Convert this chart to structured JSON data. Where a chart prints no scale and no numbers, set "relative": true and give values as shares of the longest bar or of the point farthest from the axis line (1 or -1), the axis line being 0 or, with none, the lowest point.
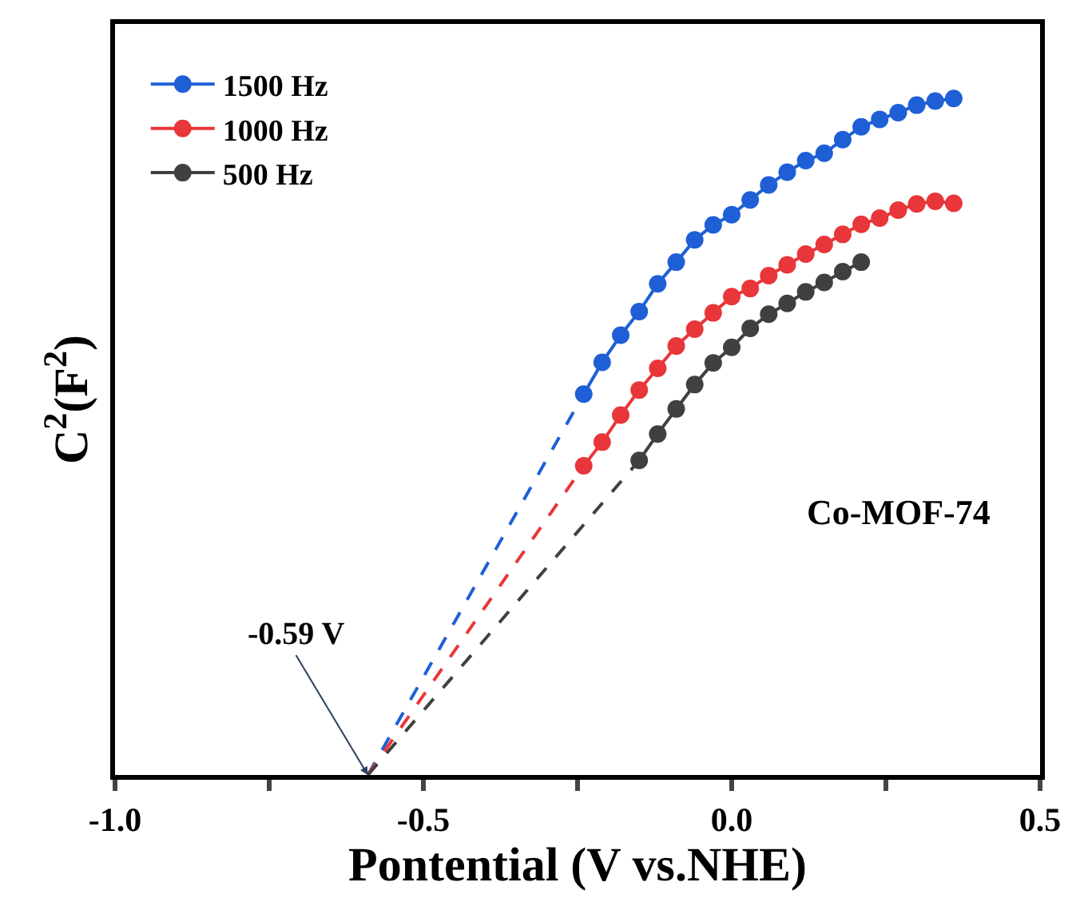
{
  "chart_data": {
    "type": "line",
    "relative": true,
    "xlabel": "Pontential (V vs.NHE)",
    "ylabel": "C$^{2}$(F$^{2}$)",
    "xlim": [
      -1.0,
      0.5
    ],
    "xticks": [
      {
        "value": -1.0,
        "label": "-1.0"
      },
      {
        "value": -0.75,
        "label": null
      },
      {
        "value": -0.5,
        "label": "-0.5"
      },
      {
        "value": -0.25,
        "label": null
      },
      {
        "value": 0.0,
        "label": "0.0"
      },
      {
        "value": 0.25,
        "label": null
      },
      {
        "value": 0.5,
        "label": "0.5"
      }
    ],
    "tick_labels": "x",
    "legend": "top left",
    "marker": "circle",
    "annotations": [
      {
        "text": "-0.59 V",
        "x": -0.59,
        "y": 0
      },
      "Co-MOF-74"
    ],
    "series": [
      {
        "name": "1500 Hz",
        "color": "#1f5fd6",
        "line_style": "solid",
        "x": [
          -0.24,
          -0.21,
          -0.18,
          -0.15,
          -0.12,
          -0.09,
          -0.06,
          -0.03,
          0.0,
          0.03,
          0.06,
          0.09,
          0.12,
          0.15,
          0.18,
          0.21,
          0.24,
          0.27,
          0.3,
          0.33,
          0.36
        ],
        "values": [
          0.563,
          0.61,
          0.65,
          0.685,
          0.726,
          0.758,
          0.791,
          0.813,
          0.828,
          0.85,
          0.872,
          0.891,
          0.908,
          0.919,
          0.939,
          0.958,
          0.969,
          0.979,
          0.99,
          0.996,
          1.0
        ]
      },
      {
        "name": "1000 Hz",
        "color": "#e8363a",
        "line_style": "solid",
        "x": [
          -0.24,
          -0.21,
          -0.18,
          -0.15,
          -0.12,
          -0.09,
          -0.06,
          -0.03,
          0.0,
          0.03,
          0.06,
          0.09,
          0.12,
          0.15,
          0.18,
          0.21,
          0.24,
          0.27,
          0.3,
          0.33,
          0.36
        ],
        "values": [
          0.457,
          0.492,
          0.532,
          0.569,
          0.601,
          0.634,
          0.659,
          0.683,
          0.707,
          0.719,
          0.738,
          0.754,
          0.77,
          0.784,
          0.799,
          0.814,
          0.823,
          0.835,
          0.844,
          0.848,
          0.845
        ]
      },
      {
        "name": "500 Hz",
        "color": "#404040",
        "line_style": "solid",
        "x": [
          -0.15,
          -0.12,
          -0.09,
          -0.06,
          -0.03,
          0.0,
          0.03,
          0.06,
          0.09,
          0.12,
          0.15,
          0.18,
          0.21
        ],
        "values": [
          0.465,
          0.504,
          0.541,
          0.577,
          0.609,
          0.632,
          0.66,
          0.681,
          0.697,
          0.714,
          0.728,
          0.744,
          0.758
        ]
      },
      {
        "color": "#1f5fd6",
        "line_style": "dashed",
        "marker": "none",
        "x": [
          -0.59,
          -0.24
        ],
        "values": [
          0,
          0.563
        ]
      },
      {
        "color": "#e8363a",
        "line_style": "dashed",
        "marker": "none",
        "x": [
          -0.59,
          -0.24
        ],
        "values": [
          0,
          0.457
        ]
      },
      {
        "color": "#404040",
        "line_style": "dashed",
        "marker": "none",
        "x": [
          -0.59,
          -0.15
        ],
        "values": [
          0,
          0.465
        ]
      }
    ]
  }
}
